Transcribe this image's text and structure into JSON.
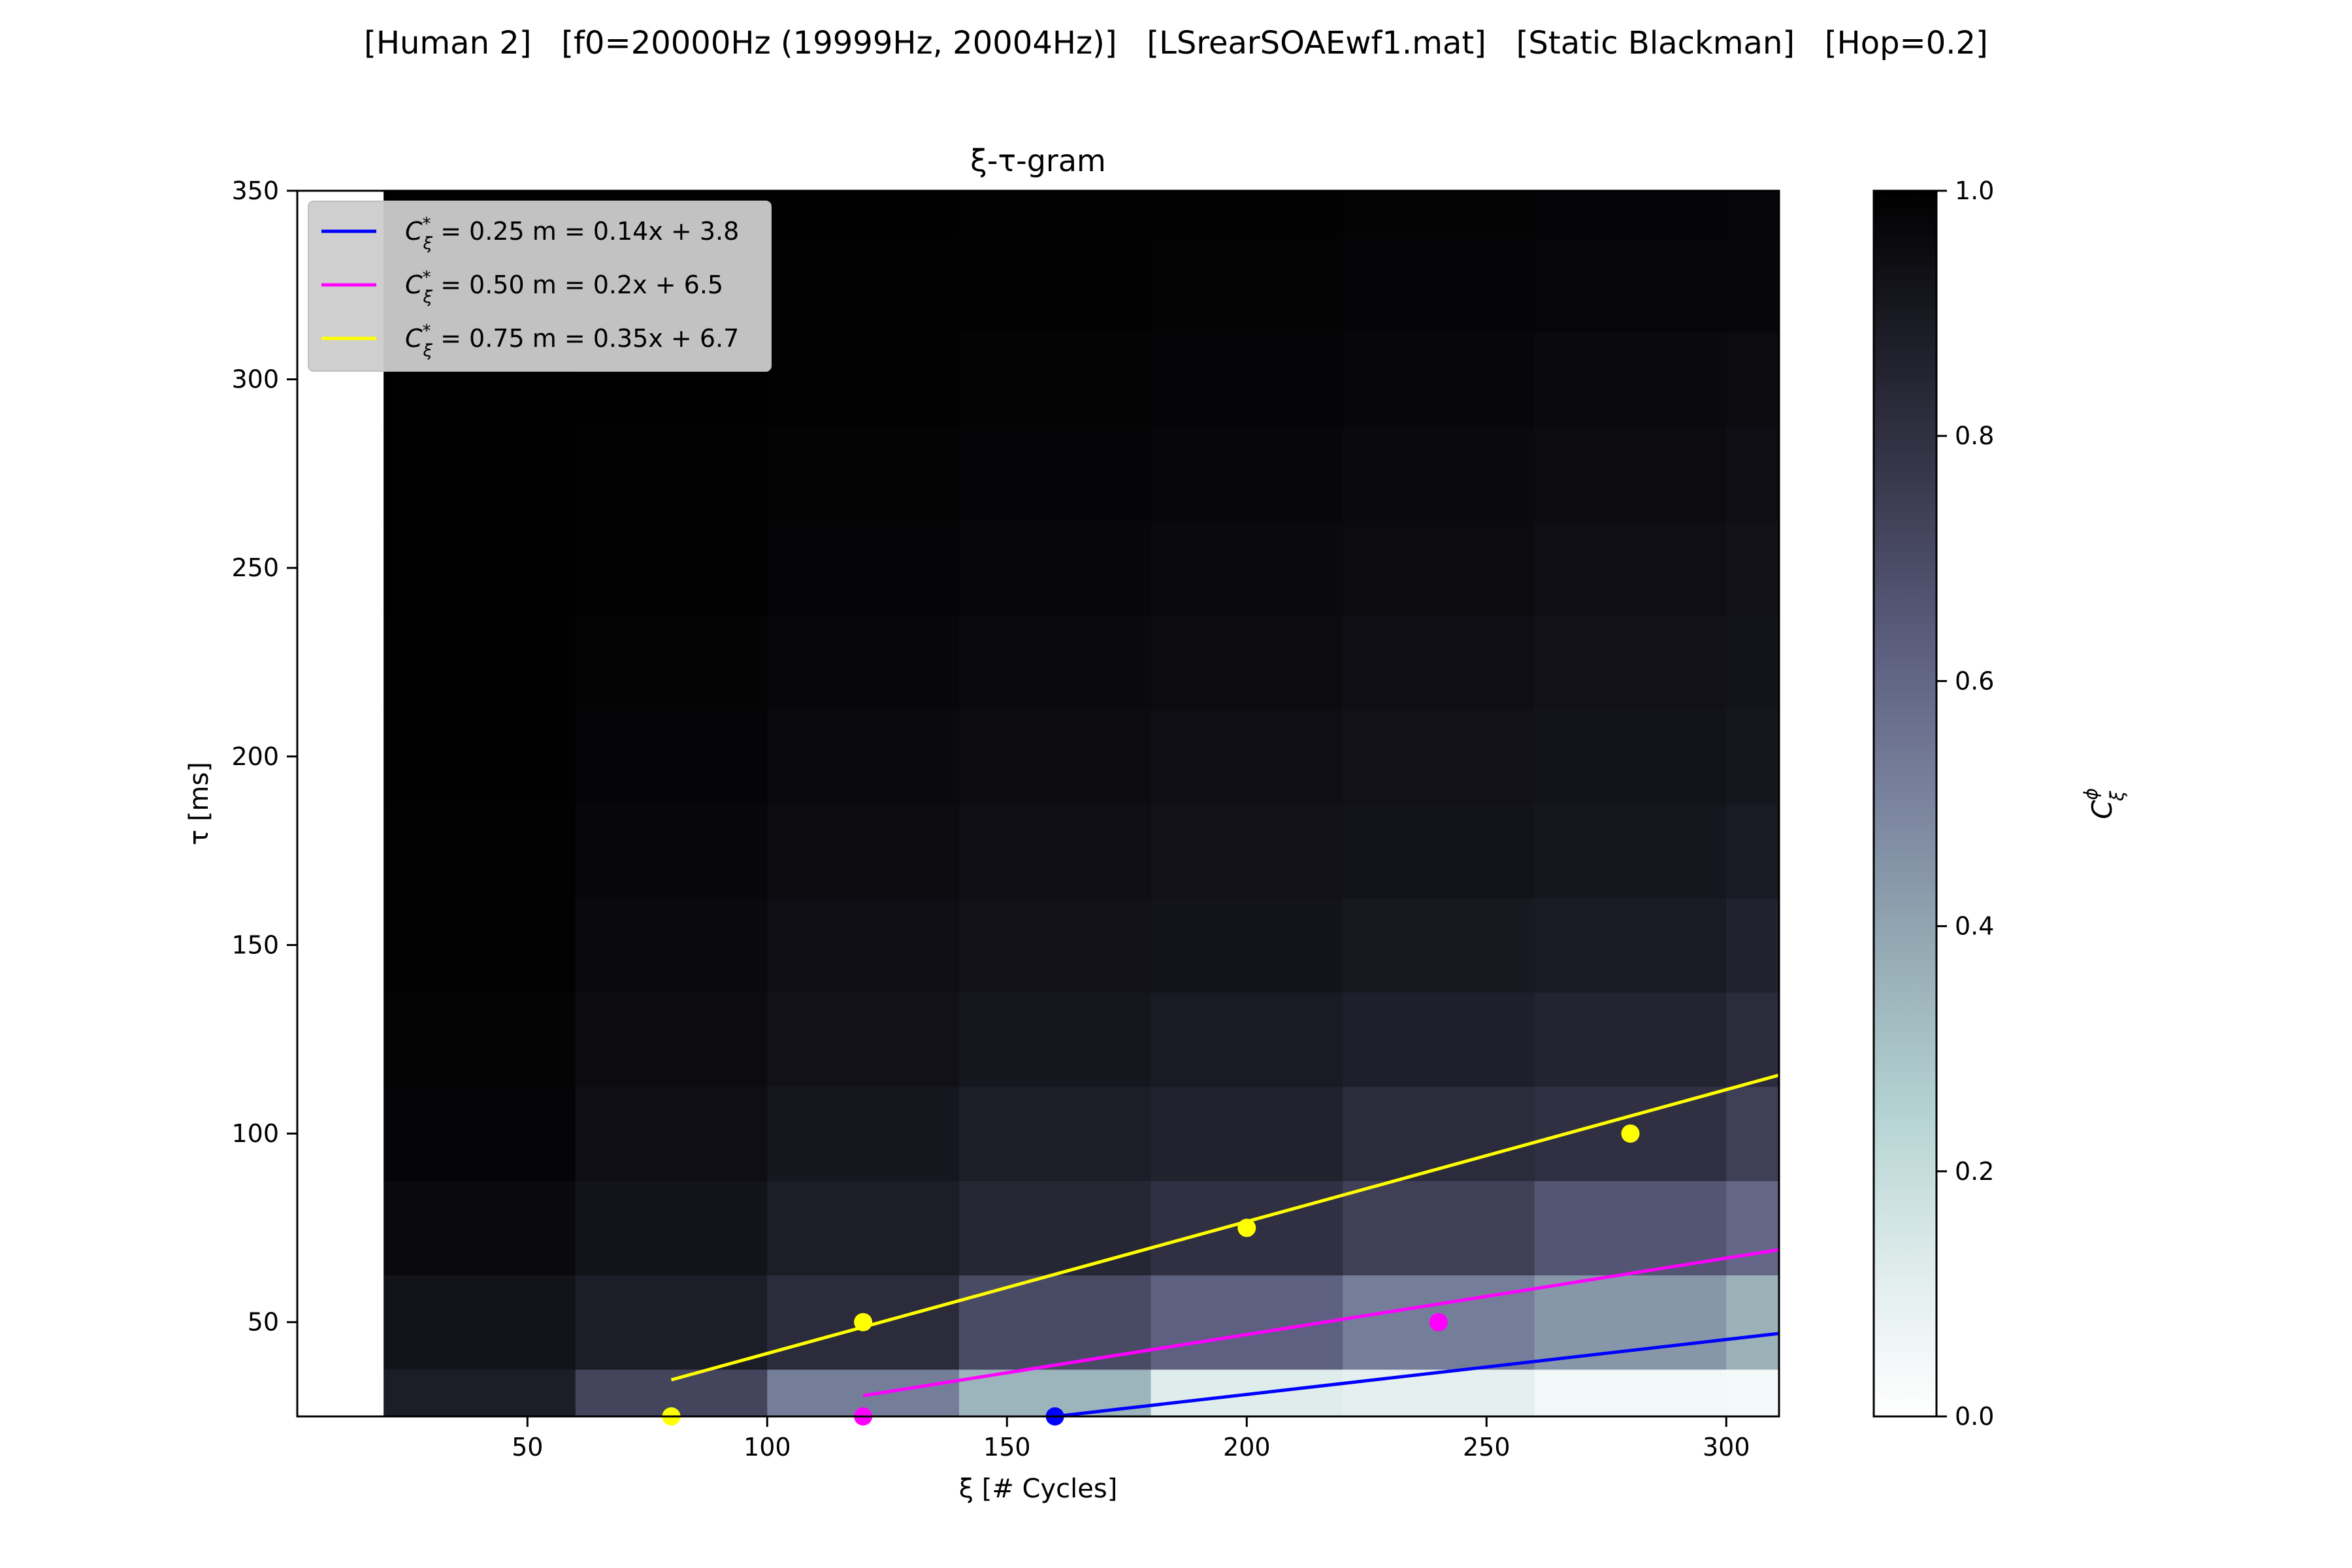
{
  "figure": {
    "suptitle": "[Human 2]   [f0=20000Hz (19999Hz, 20004Hz)]   [LSrearSOAEwf1.mat]   [Static Blackman]   [Hop=0.2]"
  },
  "chart_data": {
    "type": "heatmap",
    "title": "ξ-τ-gram",
    "xlabel": "ξ [# Cycles]",
    "ylabel": "τ [ms]",
    "colorbar_label": "Cξϕ",
    "xlim": [
      2,
      311
    ],
    "ylim": [
      25,
      350
    ],
    "xticks": [
      50,
      100,
      150,
      200,
      250,
      300
    ],
    "yticks": [
      50,
      100,
      150,
      200,
      250,
      300,
      350
    ],
    "colorbar_ticks": [
      0.0,
      0.2,
      0.4,
      0.6,
      0.8,
      1.0
    ],
    "clim": [
      0.0,
      1.0
    ],
    "colormap": "bone_r",
    "grid": false,
    "legend_position": "upper-left",
    "heatmap": {
      "x_edges": [
        20,
        60,
        100,
        140,
        180,
        220,
        260,
        300,
        311
      ],
      "y_edges": [
        25,
        37.5,
        62.5,
        87.5,
        112.5,
        137.5,
        162.5,
        187.5,
        212.5,
        237.5,
        262.5,
        287.5,
        312.5,
        337.5,
        350
      ],
      "values": [
        [
          0.88,
          0.72,
          0.52,
          0.35,
          0.12,
          0.1,
          0.05,
          0.04
        ],
        [
          0.92,
          0.88,
          0.82,
          0.7,
          0.62,
          0.52,
          0.44,
          0.36
        ],
        [
          0.96,
          0.92,
          0.88,
          0.84,
          0.8,
          0.74,
          0.66,
          0.6
        ],
        [
          0.98,
          0.94,
          0.91,
          0.88,
          0.86,
          0.82,
          0.8,
          0.74
        ],
        [
          0.985,
          0.95,
          0.93,
          0.91,
          0.89,
          0.87,
          0.85,
          0.82
        ],
        [
          0.99,
          0.96,
          0.94,
          0.93,
          0.92,
          0.9,
          0.89,
          0.86
        ],
        [
          0.99,
          0.97,
          0.95,
          0.94,
          0.93,
          0.92,
          0.91,
          0.89
        ],
        [
          0.995,
          0.98,
          0.96,
          0.95,
          0.94,
          0.93,
          0.92,
          0.91
        ],
        [
          0.995,
          0.985,
          0.97,
          0.96,
          0.95,
          0.94,
          0.93,
          0.92
        ],
        [
          1.0,
          0.99,
          0.98,
          0.97,
          0.96,
          0.95,
          0.94,
          0.93
        ],
        [
          1.0,
          0.99,
          0.985,
          0.98,
          0.97,
          0.96,
          0.95,
          0.94
        ],
        [
          1.0,
          0.995,
          0.99,
          0.985,
          0.98,
          0.97,
          0.96,
          0.95
        ],
        [
          1.0,
          0.995,
          0.99,
          0.99,
          0.985,
          0.98,
          0.975,
          0.97
        ],
        [
          1.0,
          1.0,
          0.995,
          0.99,
          0.99,
          0.985,
          0.98,
          0.975
        ]
      ]
    },
    "series": [
      {
        "name": "C*ξ = 0.25  m = 0.14x + 3.8",
        "coherence": "0.25",
        "fit_label": "m = 0.14x + 3.8",
        "color": "#0000ff",
        "points": [
          [
            160,
            25
          ]
        ],
        "fit_line": [
          [
            160,
            25
          ],
          [
            311,
            47
          ]
        ]
      },
      {
        "name": "C*ξ = 0.50  m = 0.2x + 6.5",
        "coherence": "0.50",
        "fit_label": "m = 0.2x + 6.5",
        "color": "#ff00ff",
        "points": [
          [
            120,
            25
          ],
          [
            240,
            50
          ]
        ],
        "fit_line": [
          [
            120,
            30.5
          ],
          [
            311,
            69.2
          ]
        ]
      },
      {
        "name": "C*ξ = 0.75  m = 0.35x + 6.7",
        "coherence": "0.75",
        "fit_label": "m = 0.35x + 6.7",
        "color": "#ffff00",
        "points": [
          [
            80,
            25
          ],
          [
            120,
            50
          ],
          [
            200,
            75
          ],
          [
            280,
            100
          ]
        ],
        "fit_line": [
          [
            80,
            34.7
          ],
          [
            311,
            115.5
          ]
        ]
      }
    ]
  }
}
